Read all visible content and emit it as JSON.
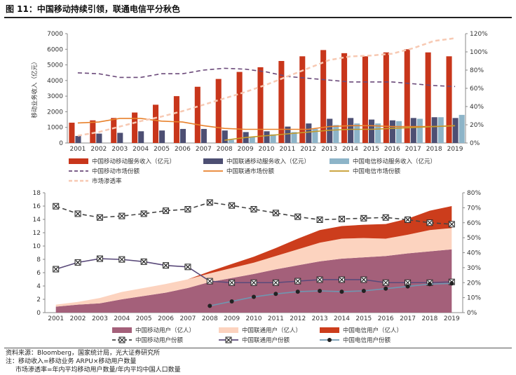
{
  "title": "图 11：中国移动持续引领，联通电信平分秋色",
  "footnotes": [
    "资料来源：Bloomberg，国家统计局，光大证券研究所",
    "注：移动收入=移动业务 ARPU×移动用户数量",
    "市场渗透率=年内平均移动用户数量/年内平均中国人口数量"
  ],
  "chart_data": [
    {
      "type": "bar",
      "categories": [
        "2001",
        "2002",
        "2003",
        "2004",
        "2005",
        "2006",
        "2007",
        "2008",
        "2009",
        "2010",
        "2011",
        "2012",
        "2013",
        "2014",
        "2015",
        "2016",
        "2017",
        "2018",
        "2019"
      ],
      "ylabel": "移动业务收入（亿元）",
      "ylim": [
        0,
        7000
      ],
      "y2lim": [
        0,
        1.2
      ],
      "y_ticks": [
        "0",
        "1000",
        "2000",
        "3000",
        "4000",
        "5000",
        "6000",
        "7000"
      ],
      "y2_ticks": [
        "0%",
        "20%",
        "40%",
        "60%",
        "80%",
        "100%",
        "120%"
      ],
      "series": [
        {
          "name": "中国移动移动服务收入（亿元）",
          "kind": "bar",
          "color": "#c8361b",
          "values": [
            1300,
            1450,
            1600,
            1950,
            2450,
            3000,
            3600,
            4100,
            4550,
            4850,
            5250,
            5550,
            5950,
            5750,
            5550,
            5800,
            6000,
            5800,
            5550
          ]
        },
        {
          "name": "中国联通移动服务收入（亿元）",
          "kind": "bar",
          "color": "#4d4f73",
          "values": [
            450,
            600,
            650,
            750,
            800,
            900,
            900,
            800,
            700,
            750,
            1050,
            1250,
            1550,
            1600,
            1500,
            1450,
            1600,
            1650,
            1600
          ]
        },
        {
          "name": "中国电信移动服务收入（亿元）",
          "kind": "bar",
          "color": "#8db4c8",
          "values": [
            0,
            0,
            0,
            0,
            0,
            0,
            0,
            200,
            400,
            550,
            700,
            900,
            1150,
            1250,
            1250,
            1400,
            1550,
            1650,
            1800
          ]
        },
        {
          "name": "中国移动市场份额",
          "kind": "line",
          "axis": "right",
          "color": "#6b4a7a",
          "dash": true,
          "values": [
            0.77,
            0.76,
            0.72,
            0.72,
            0.76,
            0.76,
            0.8,
            0.82,
            0.81,
            0.78,
            0.73,
            0.71,
            0.69,
            0.67,
            0.67,
            0.67,
            0.65,
            0.63,
            0.62
          ]
        },
        {
          "name": "中国联通市场份额",
          "kind": "line",
          "axis": "right",
          "color": "#e8812b",
          "values": [
            0.22,
            0.23,
            0.27,
            0.27,
            0.24,
            0.23,
            0.19,
            0.16,
            0.15,
            0.15,
            0.15,
            0.15,
            0.18,
            0.19,
            0.19,
            0.18,
            0.18,
            0.18,
            0.19
          ]
        },
        {
          "name": "中国电信市场份额",
          "kind": "line",
          "axis": "right",
          "color": "#c59a2a",
          "values": [
            null,
            null,
            null,
            null,
            null,
            null,
            null,
            0.03,
            0.06,
            0.08,
            0.1,
            0.12,
            0.14,
            0.15,
            0.15,
            0.16,
            0.17,
            0.18,
            0.19
          ]
        },
        {
          "name": "市场渗透率",
          "kind": "line",
          "axis": "right",
          "color": "#f7c9b3",
          "dash": true,
          "width": 2.5,
          "values": [
            0.08,
            0.12,
            0.18,
            0.24,
            0.29,
            0.35,
            0.42,
            0.49,
            0.56,
            0.64,
            0.73,
            0.82,
            0.91,
            0.95,
            0.96,
            0.98,
            1.04,
            1.12,
            1.15
          ]
        }
      ]
    },
    {
      "type": "area",
      "categories": [
        "2001",
        "2002",
        "2003",
        "2004",
        "2005",
        "2006",
        "2007",
        "2008",
        "2009",
        "2010",
        "2011",
        "2012",
        "2013",
        "2014",
        "2015",
        "2016",
        "2017",
        "2018",
        "2019"
      ],
      "ylim": [
        0,
        18
      ],
      "y2lim": [
        0,
        0.8
      ],
      "y_ticks": [
        "0",
        "2",
        "4",
        "6",
        "8",
        "10",
        "12",
        "14",
        "16",
        "18"
      ],
      "y2_ticks": [
        "0%",
        "10%",
        "20%",
        "30%",
        "40%",
        "50%",
        "60%",
        "70%",
        "80%"
      ],
      "series": [
        {
          "name": "中国移动用户（亿人）",
          "kind": "area",
          "color": "#a4607a",
          "values": [
            0.9,
            1.2,
            1.4,
            2.0,
            2.5,
            3.0,
            3.7,
            4.6,
            5.2,
            5.8,
            6.5,
            7.1,
            7.7,
            8.1,
            8.3,
            8.5,
            8.9,
            9.2,
            9.5
          ]
        },
        {
          "name": "中国联通用户（亿人）",
          "kind": "area",
          "color": "#fcd3bf",
          "values": [
            0.3,
            0.4,
            0.8,
            1.1,
            1.2,
            1.3,
            1.3,
            1.3,
            1.5,
            1.7,
            2.0,
            2.4,
            2.8,
            3.0,
            2.9,
            2.6,
            2.8,
            3.2,
            3.2
          ]
        },
        {
          "name": "中国电信用户（亿人）",
          "kind": "area",
          "color": "#cc3d1c",
          "values": [
            0,
            0,
            0,
            0,
            0,
            0,
            0,
            0.3,
            0.6,
            0.9,
            1.2,
            1.6,
            1.9,
            1.9,
            2.0,
            2.2,
            2.4,
            2.9,
            3.3
          ]
        },
        {
          "name": "中国移动用户份额",
          "kind": "line",
          "axis": "right",
          "color": "#444",
          "dash": true,
          "marker": "x-square",
          "values": [
            0.71,
            0.66,
            0.635,
            0.645,
            0.66,
            0.68,
            0.69,
            0.735,
            0.715,
            0.69,
            0.665,
            0.64,
            0.62,
            0.625,
            0.63,
            0.635,
            0.62,
            0.6,
            0.59
          ]
        },
        {
          "name": "中国联通用户份额",
          "kind": "line",
          "axis": "right",
          "color": "#5a4a7a",
          "marker": "x-square",
          "values": [
            0.29,
            0.335,
            0.36,
            0.355,
            0.34,
            0.315,
            0.305,
            0.21,
            0.2,
            0.2,
            0.2,
            0.21,
            0.22,
            0.22,
            0.22,
            0.2,
            0.2,
            0.2,
            0.205
          ]
        },
        {
          "name": "中国电信用户份额",
          "kind": "line",
          "axis": "right",
          "color": "#6f97b1",
          "marker": "dot",
          "values": [
            null,
            null,
            null,
            null,
            null,
            null,
            null,
            0.045,
            0.075,
            0.105,
            0.125,
            0.14,
            0.145,
            0.14,
            0.145,
            0.16,
            0.175,
            0.19,
            0.195
          ]
        }
      ]
    }
  ]
}
